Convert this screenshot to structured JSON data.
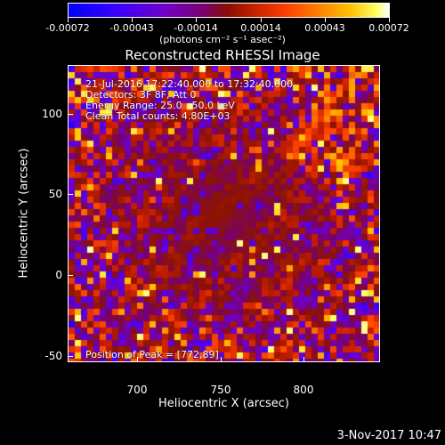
{
  "colorbar": {
    "ticks": [
      "-0.00072",
      "-0.00043",
      "-0.00014",
      "0.00014",
      "0.00043",
      "0.00072"
    ],
    "units": "(photons cm⁻² s⁻¹ asec⁻²)"
  },
  "title": "Reconstructed RHESSI Image",
  "annotations": {
    "line1": "21-Jul-2016 17:22:40.000 to 17:32:40.000",
    "line2": "Detectors: 3F 8F, Att 0",
    "line3": "Energy Range: 25.0 - 50.0 keV",
    "line4": "Clean    Total counts: 4.80E+03",
    "peak": "Position of Peak = [772,89]"
  },
  "axes": {
    "xlabel": "Heliocentric X (arcsec)",
    "ylabel": "Heliocentric Y (arcsec)",
    "xticks": [
      "700",
      "750",
      "800"
    ],
    "yticks": [
      "100",
      "50",
      "0",
      "-50"
    ]
  },
  "footer": {
    "date": "3-Nov-2017 10:47"
  }
}
